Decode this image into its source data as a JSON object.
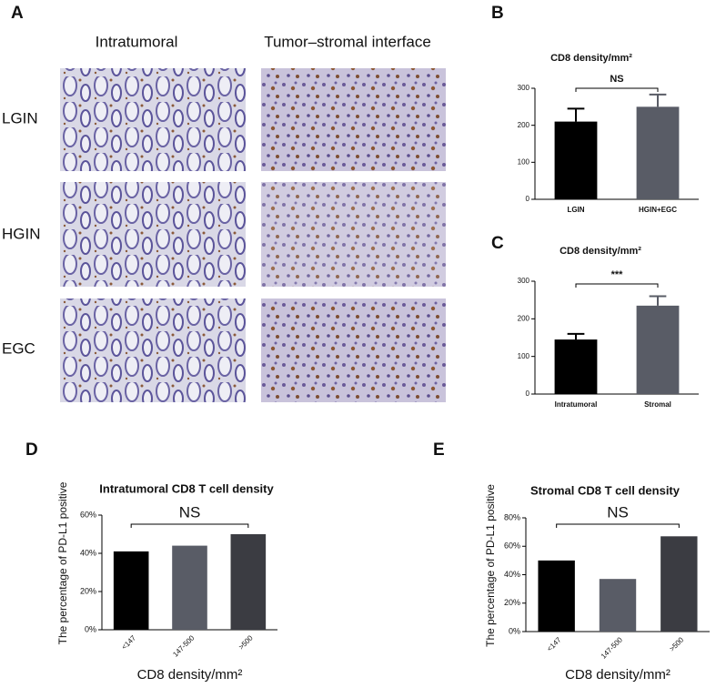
{
  "panel_labels": [
    "A",
    "B",
    "C",
    "D",
    "E"
  ],
  "panel_a": {
    "columns": [
      "Intratumoral",
      "Tumor–stromal interface"
    ],
    "rows": [
      "LGIN",
      "HGIN",
      "EGC"
    ]
  },
  "chart_data": [
    {
      "type": "bar",
      "title": "CD8 density/mm²",
      "categories": [
        "LGIN",
        "HGIN+EGC"
      ],
      "series": [
        {
          "values": [
            210,
            250
          ],
          "errors": [
            35,
            33
          ],
          "colors": [
            "#000000",
            "#595c66"
          ]
        }
      ],
      "ylim": [
        0,
        300
      ],
      "yticks": [
        0,
        100,
        200,
        300
      ],
      "annotation": "NS"
    },
    {
      "type": "bar",
      "title": "CD8 density/mm²",
      "categories": [
        "Intratumoral",
        "Stromal"
      ],
      "series": [
        {
          "values": [
            145,
            235
          ],
          "errors": [
            15,
            25
          ],
          "colors": [
            "#000000",
            "#595c66"
          ]
        }
      ],
      "ylim": [
        0,
        300
      ],
      "yticks": [
        0,
        100,
        200,
        300
      ],
      "annotation": "***"
    },
    {
      "type": "bar",
      "title": "Intratumoral CD8 T cell density",
      "categories": [
        "<147",
        "147-500",
        ">500"
      ],
      "x_label": "CD8 density/mm²",
      "y_label": "The percentage of PD-L1 positive",
      "series": [
        {
          "values": [
            41,
            44,
            50
          ],
          "colors": [
            "#000000",
            "#595c66",
            "#3b3c42"
          ]
        }
      ],
      "ylim": [
        0,
        60
      ],
      "yticks": [
        {
          "value": 0,
          "label": "0%"
        },
        {
          "value": 20,
          "label": "20%"
        },
        {
          "value": 40,
          "label": "40%"
        },
        {
          "value": 60,
          "label": "60%"
        }
      ],
      "annotation": "NS"
    },
    {
      "type": "bar",
      "title": "Stromal CD8 T cell density",
      "categories": [
        "<147",
        "147-500",
        ">500"
      ],
      "x_label": "CD8 density/mm²",
      "y_label": "The percentage of PD-L1 positive",
      "series": [
        {
          "values": [
            50,
            37,
            67
          ],
          "colors": [
            "#000000",
            "#595c66",
            "#3b3c42"
          ]
        }
      ],
      "ylim": [
        0,
        80
      ],
      "yticks": [
        {
          "value": 0,
          "label": "0%"
        },
        {
          "value": 20,
          "label": "20%"
        },
        {
          "value": 40,
          "label": "40%"
        },
        {
          "value": 60,
          "label": "60%"
        },
        {
          "value": 80,
          "label": "80%"
        }
      ],
      "annotation": "NS"
    }
  ]
}
